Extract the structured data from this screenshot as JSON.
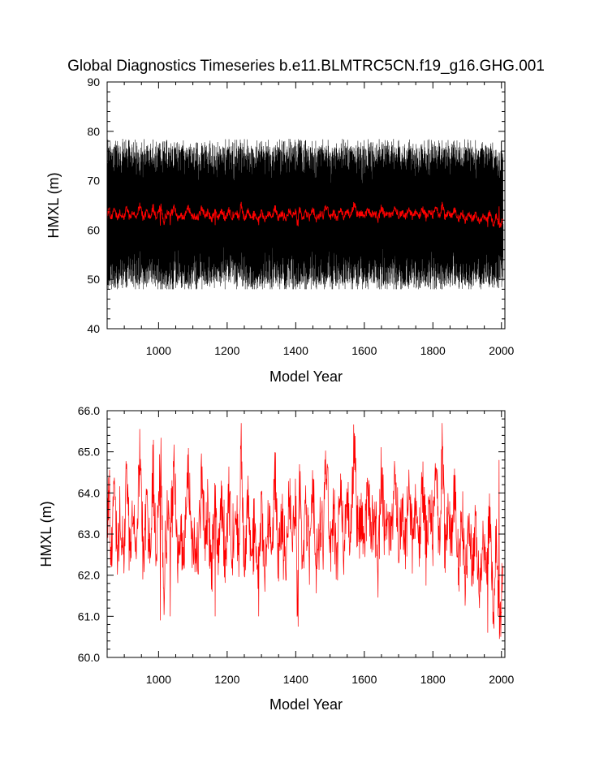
{
  "chart_data": [
    {
      "type": "line",
      "title": "Global Diagnostics Timeseries b.e11.BLMTRC5CN.f19_g16.GHG.001",
      "xlabel": "Model Year",
      "ylabel": "HMXL (m)",
      "xlim": [
        850,
        2010
      ],
      "ylim": [
        40,
        90
      ],
      "x_ticks": [
        1000,
        1200,
        1400,
        1600,
        1800,
        2000
      ],
      "x_tick_labels": [
        "1000",
        "1200",
        "1400",
        "1600",
        "1800",
        "2000"
      ],
      "y_ticks": [
        40,
        50,
        60,
        70,
        80,
        90
      ],
      "y_tick_labels": [
        "40",
        "50",
        "60",
        "70",
        "80",
        "90"
      ],
      "grid": false,
      "legend": "none",
      "series": [
        {
          "color": "#000000",
          "description_kind": "monthly",
          "x_range": [
            850,
            2005
          ],
          "mean": 63.2,
          "range": [
            48,
            82
          ],
          "sample_points": [
            [
              850,
              50
            ],
            [
              851,
              77
            ],
            [
              900,
              51
            ],
            [
              901,
              79
            ],
            [
              1000,
              49
            ],
            [
              1001,
              79
            ],
            [
              1100,
              50
            ],
            [
              1101,
              80
            ],
            [
              1240,
              52
            ],
            [
              1241,
              82
            ],
            [
              1300,
              48
            ],
            [
              1301,
              79
            ],
            [
              1500,
              49
            ],
            [
              1501,
              81
            ],
            [
              1600,
              48
            ],
            [
              1601,
              80
            ],
            [
              1700,
              50
            ],
            [
              1701,
              81
            ],
            [
              1800,
              49
            ],
            [
              1801,
              80
            ],
            [
              1900,
              49
            ],
            [
              1901,
              79
            ],
            [
              1990,
              48
            ],
            [
              1991,
              75
            ],
            [
              2005,
              51
            ]
          ]
        },
        {
          "color": "#ff0000",
          "description_kind": "annual",
          "ref": "chart_data.1.series.0"
        }
      ]
    },
    {
      "type": "line",
      "title": "",
      "xlabel": "Model Year",
      "ylabel": "HMXL (m)",
      "xlim": [
        850,
        2010
      ],
      "ylim": [
        60.0,
        66.0
      ],
      "x_ticks": [
        1000,
        1200,
        1400,
        1600,
        1800,
        2000
      ],
      "x_tick_labels": [
        "1000",
        "1200",
        "1400",
        "1600",
        "1800",
        "2000"
      ],
      "y_ticks": [
        60.0,
        61.0,
        62.0,
        63.0,
        64.0,
        65.0,
        66.0
      ],
      "y_tick_labels": [
        "60.0",
        "61.0",
        "62.0",
        "63.0",
        "64.0",
        "65.0",
        "66.0"
      ],
      "grid": false,
      "legend": "none",
      "series": [
        {
          "color": "#ff0000",
          "x_range": [
            850,
            2005
          ],
          "anchors": [
            [
              850,
              62.6
            ],
            [
              855,
              64.4
            ],
            [
              862,
              62.1
            ],
            [
              870,
              64.5
            ],
            [
              880,
              62.6
            ],
            [
              890,
              63.4
            ],
            [
              900,
              62.0
            ],
            [
              905,
              64.9
            ],
            [
              915,
              62.6
            ],
            [
              925,
              63.7
            ],
            [
              935,
              62.0
            ],
            [
              945,
              65.2
            ],
            [
              955,
              62.4
            ],
            [
              965,
              63.8
            ],
            [
              975,
              62.5
            ],
            [
              985,
              64.6
            ],
            [
              995,
              62.3
            ],
            [
              1005,
              65.2
            ],
            [
              1015,
              61.8
            ],
            [
              1025,
              63.3
            ],
            [
              1035,
              62.8
            ],
            [
              1045,
              64.8
            ],
            [
              1055,
              62.6
            ],
            [
              1065,
              63.1
            ],
            [
              1075,
              62.2
            ],
            [
              1085,
              64.8
            ],
            [
              1095,
              62.9
            ],
            [
              1105,
              63.0
            ],
            [
              1115,
              62.2
            ],
            [
              1125,
              64.5
            ],
            [
              1135,
              63.0
            ],
            [
              1145,
              63.6
            ],
            [
              1155,
              62.1
            ],
            [
              1165,
              64.1
            ],
            [
              1175,
              62.7
            ],
            [
              1185,
              63.9
            ],
            [
              1195,
              62.2
            ],
            [
              1205,
              64.0
            ],
            [
              1215,
              62.5
            ],
            [
              1225,
              63.6
            ],
            [
              1235,
              62.6
            ],
            [
              1240,
              65.5
            ],
            [
              1250,
              62.3
            ],
            [
              1260,
              63.9
            ],
            [
              1270,
              62.4
            ],
            [
              1280,
              63.2
            ],
            [
              1290,
              62.0
            ],
            [
              1300,
              63.6
            ],
            [
              1310,
              62.1
            ],
            [
              1320,
              63.5
            ],
            [
              1330,
              62.6
            ],
            [
              1340,
              64.5
            ],
            [
              1350,
              62.3
            ],
            [
              1360,
              63.4
            ],
            [
              1370,
              62.1
            ],
            [
              1380,
              63.8
            ],
            [
              1390,
              62.7
            ],
            [
              1400,
              63.7
            ],
            [
              1405,
              61.3
            ],
            [
              1410,
              64.2
            ],
            [
              1420,
              62.4
            ],
            [
              1430,
              63.6
            ],
            [
              1440,
              62.8
            ],
            [
              1450,
              64.0
            ],
            [
              1460,
              62.3
            ],
            [
              1470,
              63.3
            ],
            [
              1480,
              62.9
            ],
            [
              1490,
              64.9
            ],
            [
              1500,
              62.6
            ],
            [
              1510,
              63.4
            ],
            [
              1520,
              62.4
            ],
            [
              1530,
              64.2
            ],
            [
              1540,
              62.8
            ],
            [
              1550,
              63.8
            ],
            [
              1560,
              62.7
            ],
            [
              1570,
              65.2
            ],
            [
              1580,
              62.9
            ],
            [
              1590,
              63.2
            ],
            [
              1600,
              62.5
            ],
            [
              1610,
              64.3
            ],
            [
              1620,
              62.9
            ],
            [
              1630,
              63.5
            ],
            [
              1640,
              62.4
            ],
            [
              1650,
              64.4
            ],
            [
              1660,
              63.0
            ],
            [
              1670,
              63.5
            ],
            [
              1680,
              62.7
            ],
            [
              1690,
              64.6
            ],
            [
              1700,
              62.8
            ],
            [
              1710,
              63.7
            ],
            [
              1720,
              62.6
            ],
            [
              1730,
              64.2
            ],
            [
              1740,
              63.0
            ],
            [
              1750,
              63.6
            ],
            [
              1760,
              62.8
            ],
            [
              1770,
              64.3
            ],
            [
              1780,
              62.7
            ],
            [
              1790,
              63.8
            ],
            [
              1800,
              62.9
            ],
            [
              1810,
              64.6
            ],
            [
              1820,
              62.6
            ],
            [
              1828,
              65.7
            ],
            [
              1835,
              62.6
            ],
            [
              1845,
              63.7
            ],
            [
              1855,
              62.6
            ],
            [
              1865,
              64.1
            ],
            [
              1875,
              62.3
            ],
            [
              1885,
              63.3
            ],
            [
              1895,
              62.0
            ],
            [
              1905,
              63.5
            ],
            [
              1915,
              62.0
            ],
            [
              1925,
              63.3
            ],
            [
              1935,
              61.6
            ],
            [
              1945,
              63.0
            ],
            [
              1955,
              61.9
            ],
            [
              1965,
              63.5
            ],
            [
              1975,
              61.2
            ],
            [
              1985,
              62.7
            ],
            [
              1995,
              60.9
            ],
            [
              2005,
              62.0
            ]
          ],
          "extremes": [
            [
              1005,
              60.9
            ],
            [
              1034,
              61.0
            ],
            [
              1165,
              61.0
            ],
            [
              1292,
              61.0
            ],
            [
              1407,
              60.75
            ],
            [
              1960,
              60.6
            ],
            [
              1978,
              60.7
            ],
            [
              1992,
              61.2
            ],
            [
              1998,
              60.5
            ],
            [
              1993,
              64.8
            ]
          ]
        }
      ]
    }
  ]
}
